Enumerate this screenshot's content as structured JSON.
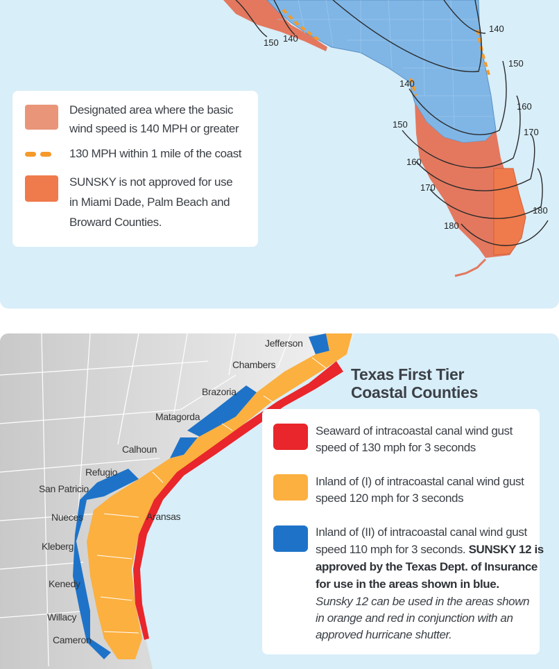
{
  "florida": {
    "legend": {
      "item1_line1": "Designated area where the basic",
      "item1_line2": "wind speed is 140 MPH or greater",
      "item2": "130 MPH within 1 mile of the coast",
      "item3_line1": "SUNSKY is not approved for use",
      "item3_line2": "in Miami Dade, Palm Beach and",
      "item3_line3": "Broward Counties."
    },
    "isolines": [
      "150",
      "140",
      "140",
      "150",
      "140",
      "160",
      "150",
      "170",
      "160",
      "170",
      "180",
      "180"
    ],
    "colors": {
      "high_wind": "#e3785f",
      "sunsky_excluded": "#ef7a4c",
      "coast": "#f59a2a",
      "state": "#7fb6e6"
    }
  },
  "texas": {
    "title_line1": "Texas First Tier",
    "title_line2": "Coastal Counties",
    "legend": {
      "red_line1": "Seaward of intracoastal canal wind gust",
      "red_line2": "speed of 130 mph for 3 seconds",
      "orange_line1": "Inland of (I) of intracoastal canal wind gust",
      "orange_line2": "speed 120 mph for 3 seconds",
      "blue_line1": "Inland of (II) of intracoastal canal wind gust",
      "blue_line2_plain": "speed 110 mph for 3 seconds.",
      "blue_line2_bold": "SUNSKY 12 is",
      "blue_line3_bold": "approved by the Texas Dept. of Insurance",
      "blue_line4_bold": "for use in the areas shown in blue.",
      "note_line1": "Sunsky 12 can be used in the areas shown",
      "note_line2": "in orange and red in conjunction with an",
      "note_line3": "approved hurricane shutter."
    },
    "counties": [
      "Jefferson",
      "Chambers",
      "Brazoria",
      "Matagorda",
      "Calhoun",
      "Refugio",
      "San Patricio",
      "Aransas",
      "Nueces",
      "Kleberg",
      "Kenedy",
      "Willacy",
      "Cameron"
    ],
    "colors": {
      "red": "#e8262b",
      "orange": "#fbb040",
      "blue": "#1e73c8"
    }
  }
}
